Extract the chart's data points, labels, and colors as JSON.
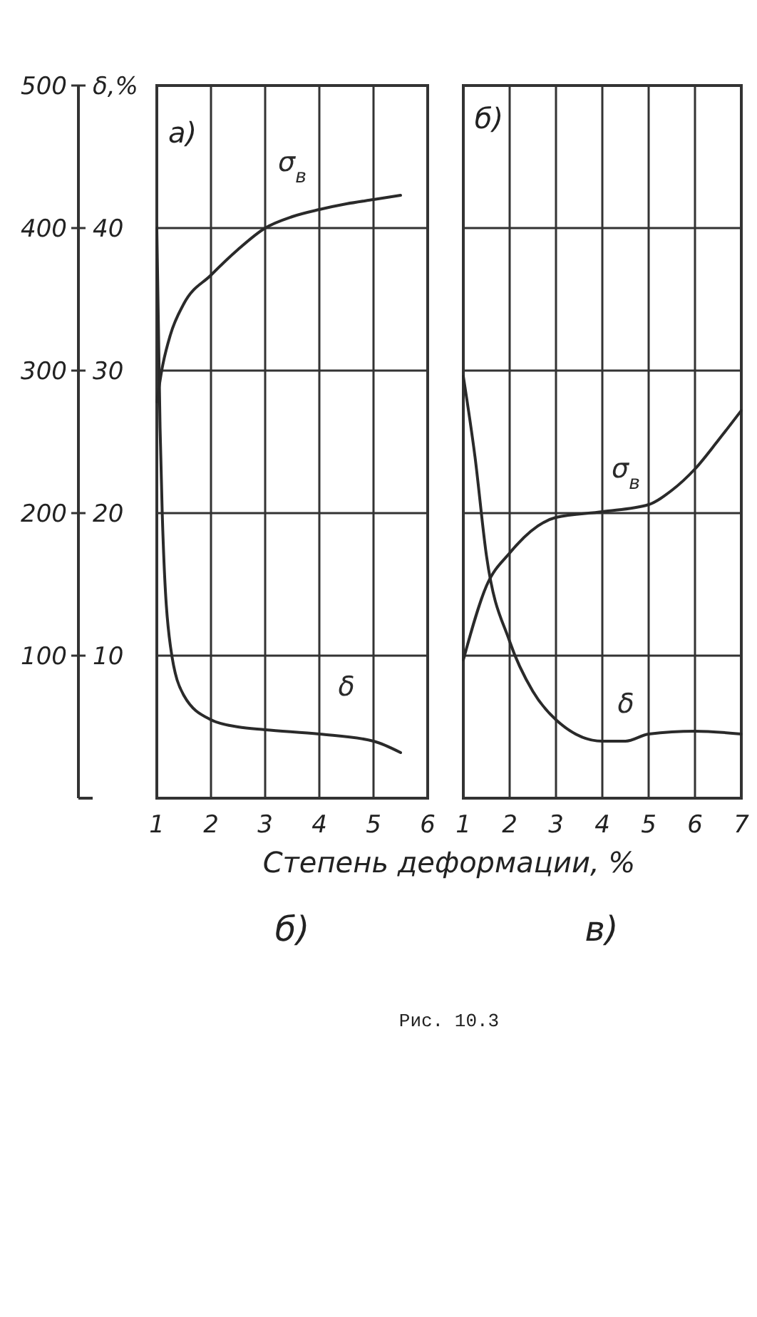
{
  "chart_data": [
    {
      "type": "line",
      "xlabel": "Степень деформации, %",
      "y2label": "δ,%",
      "xlim": [
        1,
        6
      ],
      "xticks": [
        1,
        2,
        3,
        4,
        5,
        6
      ],
      "ylim": [
        0,
        500
      ],
      "yticks": [
        100,
        200,
        300,
        400,
        500
      ],
      "y2lim": [
        0,
        50
      ],
      "y2ticks": [
        10,
        20,
        30,
        40
      ],
      "grid": true,
      "annotations": [
        "а)",
        "б)"
      ],
      "series": [
        {
          "name": "σ$_{в}$",
          "color": "#2a2a2a",
          "x": [
            1,
            1.1,
            1.25,
            1.5,
            2,
            2.5,
            3,
            3.5,
            4,
            4.5,
            5,
            5.5
          ],
          "values": [
            278,
            302,
            325,
            347,
            367,
            385,
            400,
            408,
            413,
            417,
            420,
            423
          ]
        },
        {
          "name": "δ",
          "color": "#2a2a2a",
          "axis": "y2",
          "x": [
            1,
            1.03,
            1.06,
            1.1,
            1.25,
            1.5,
            2,
            2.5,
            3,
            4,
            5,
            5.5
          ],
          "values": [
            40,
            33,
            26,
            20,
            10.7,
            7.2,
            5.5,
            5,
            4.8,
            4.5,
            4,
            3.2
          ]
        }
      ]
    },
    {
      "type": "line",
      "xlim": [
        1,
        7
      ],
      "xticks": [
        1,
        2,
        3,
        4,
        5,
        6,
        7
      ],
      "ylim": [
        0,
        500
      ],
      "yticks": [
        100,
        200,
        300,
        400,
        500
      ],
      "y2lim": [
        0,
        50
      ],
      "grid": true,
      "tick_labels": "x",
      "annotations": [
        "б)",
        "в)",
        "Рис. 10.3"
      ],
      "series": [
        {
          "name": "σ$_{в}$",
          "color": "#2a2a2a",
          "x": [
            1,
            1.5,
            2,
            3,
            4,
            5,
            5.5,
            6,
            6.5,
            7
          ],
          "values": [
            97,
            149,
            172,
            197,
            201,
            206,
            216,
            231,
            251,
            272
          ]
        },
        {
          "name": "δ",
          "color": "#2a2a2a",
          "axis": "y2",
          "x": [
            1,
            1.25,
            1.5,
            2,
            2.5,
            3,
            4,
            4.5,
            5,
            6,
            7
          ],
          "values": [
            29.6,
            24,
            17,
            11,
            7.5,
            5.5,
            4,
            4,
            4.5,
            4.7,
            4.5
          ]
        }
      ]
    }
  ]
}
